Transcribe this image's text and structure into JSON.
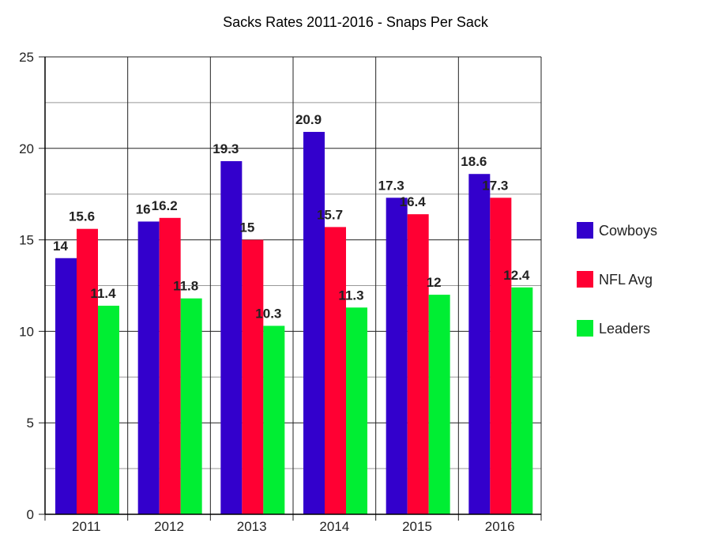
{
  "chart_data": {
    "type": "bar",
    "title": "Sacks Rates 2011-2016 - Snaps Per Sack",
    "xlabel": "",
    "ylabel": "",
    "categories": [
      "2011",
      "2012",
      "2013",
      "2014",
      "2015",
      "2016"
    ],
    "series": [
      {
        "name": "Cowboys",
        "color": "#3300cc",
        "values": [
          14,
          16,
          19.3,
          20.9,
          17.3,
          18.6
        ]
      },
      {
        "name": "NFL Avg",
        "color": "#ff0033",
        "values": [
          15.6,
          16.2,
          15,
          15.7,
          16.4,
          17.3
        ]
      },
      {
        "name": "Leaders",
        "color": "#00ee33",
        "values": [
          11.4,
          11.8,
          10.3,
          11.3,
          12,
          12.4
        ]
      }
    ],
    "ylim": [
      0,
      25
    ],
    "yticks": [
      0,
      5,
      10,
      15,
      20,
      25
    ],
    "minor_grid_step": 2.5,
    "grid": true,
    "data_labels": true,
    "legend_position": "right"
  }
}
